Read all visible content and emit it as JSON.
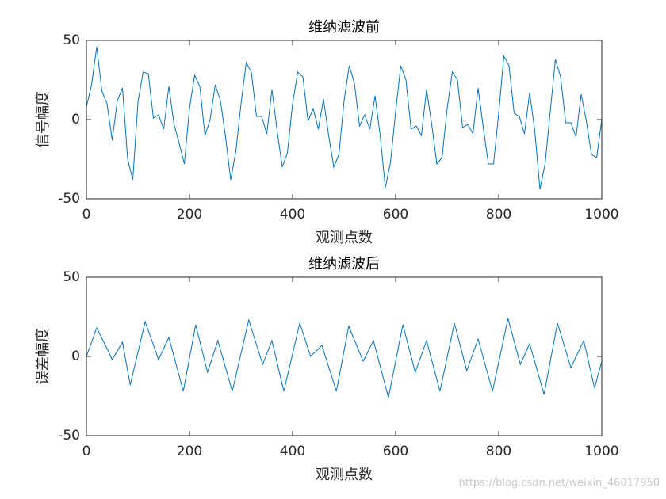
{
  "chart_data": [
    {
      "type": "line",
      "title": "维纳滤波前",
      "xlabel": "观测点数",
      "ylabel": "信号幅度",
      "color": "#0072bd",
      "xlim": [
        0,
        1000
      ],
      "ylim": [
        -50,
        50
      ],
      "xticks": [
        0,
        200,
        400,
        600,
        800,
        1000
      ],
      "yticks": [
        -50,
        0,
        50
      ],
      "x": [
        0,
        10,
        20,
        30,
        40,
        50,
        60,
        70,
        80,
        90,
        100,
        110,
        120,
        130,
        140,
        150,
        160,
        170,
        180,
        190,
        200,
        210,
        220,
        230,
        240,
        250,
        260,
        270,
        280,
        290,
        300,
        310,
        320,
        330,
        340,
        350,
        360,
        370,
        380,
        390,
        400,
        410,
        420,
        430,
        440,
        450,
        460,
        470,
        480,
        490,
        500,
        510,
        520,
        530,
        540,
        550,
        560,
        570,
        580,
        590,
        600,
        610,
        620,
        630,
        640,
        650,
        660,
        670,
        680,
        690,
        700,
        710,
        720,
        730,
        740,
        750,
        760,
        770,
        780,
        790,
        800,
        810,
        820,
        830,
        840,
        850,
        860,
        870,
        880,
        890,
        900,
        910,
        920,
        930,
        940,
        950,
        960,
        970,
        980,
        990,
        1000
      ],
      "values": [
        8,
        22,
        46,
        18,
        10,
        -13,
        12,
        20,
        -25,
        -38,
        11,
        30,
        29,
        1,
        3,
        -6,
        21,
        -3,
        -15,
        -28,
        7,
        28,
        21,
        -10,
        0,
        22,
        12,
        -11,
        -38,
        -20,
        10,
        36,
        30,
        2,
        2,
        -9,
        19,
        -7,
        -30,
        -21,
        10,
        30,
        27,
        -1,
        7,
        -6,
        13,
        -10,
        -30,
        -22,
        12,
        34,
        23,
        -4,
        3,
        -6,
        15,
        -10,
        -43,
        -27,
        5,
        34,
        25,
        -6,
        -4,
        -10,
        19,
        -3,
        -28,
        -24,
        7,
        30,
        25,
        -5,
        -3,
        -9,
        20,
        -5,
        -28,
        -28,
        4,
        40,
        34,
        4,
        2,
        -9,
        17,
        -7,
        -44,
        -28,
        5,
        38,
        27,
        -2,
        -2,
        -11,
        16,
        -1,
        -22,
        -24,
        0
      ]
    },
    {
      "type": "line",
      "title": "维纳滤波后",
      "xlabel": "观测点数",
      "ylabel": "误差幅度",
      "color": "#0072bd",
      "xlim": [
        0,
        1000
      ],
      "ylim": [
        -50,
        50
      ],
      "xticks": [
        0,
        200,
        400,
        600,
        800,
        1000
      ],
      "yticks": [
        -50,
        0,
        50
      ],
      "x": [
        0,
        20,
        40,
        50,
        70,
        85,
        114,
        140,
        160,
        188,
        212,
        235,
        255,
        283,
        315,
        342,
        360,
        383,
        414,
        435,
        457,
        485,
        509,
        537,
        557,
        586,
        614,
        638,
        660,
        686,
        714,
        738,
        760,
        788,
        818,
        842,
        860,
        888,
        914,
        940,
        965,
        986,
        1000
      ],
      "values": [
        0,
        18,
        5,
        -2,
        9,
        -18,
        22,
        -2,
        12,
        -22,
        20,
        -10,
        10,
        -22,
        23,
        -5,
        10,
        -22,
        21,
        0,
        7,
        -22,
        19,
        -3,
        10,
        -26,
        20,
        -10,
        10,
        -22,
        21,
        -9,
        11,
        -22,
        24,
        -5,
        8,
        -24,
        21,
        -7,
        10,
        -20,
        -3
      ]
    }
  ],
  "watermark": "https://blog.csdn.net/weixin_46017950"
}
